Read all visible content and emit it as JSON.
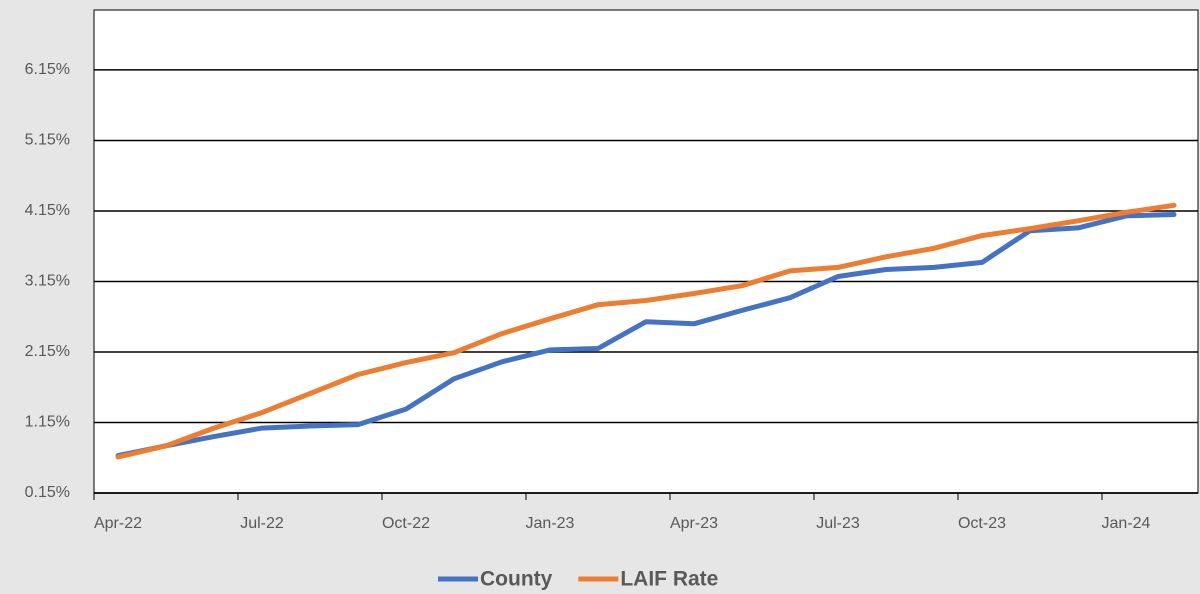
{
  "chart_data": {
    "type": "line",
    "categories": [
      "Apr-22",
      null,
      null,
      "Jul-22",
      null,
      null,
      "Oct-22",
      null,
      null,
      "Jan-23",
      null,
      null,
      "Apr-23",
      null,
      null,
      "Jul-23",
      null,
      null,
      "Oct-23",
      null,
      null,
      "Jan-24",
      null
    ],
    "series": [
      {
        "name": "County",
        "color": "#4472c4",
        "values": [
          0.68,
          0.82,
          0.95,
          1.07,
          1.1,
          1.12,
          1.34,
          1.77,
          2.01,
          2.18,
          2.2,
          2.58,
          2.55,
          2.74,
          2.92,
          3.22,
          3.32,
          3.35,
          3.42,
          3.87,
          3.91,
          4.08,
          4.1
        ]
      },
      {
        "name": "LAIF Rate",
        "color": "#ed7d31",
        "values": [
          0.66,
          0.82,
          1.07,
          1.29,
          1.56,
          1.83,
          2.0,
          2.14,
          2.41,
          2.62,
          2.82,
          2.88,
          2.98,
          3.09,
          3.3,
          3.35,
          3.5,
          3.62,
          3.8,
          3.9,
          4.01,
          4.13,
          4.23
        ]
      }
    ],
    "ylim": [
      0.15,
      7.0
    ],
    "yticks": [
      {
        "value": 0.15,
        "label": "0.15%"
      },
      {
        "value": 1.15,
        "label": "1.15%"
      },
      {
        "value": 2.15,
        "label": "2.15%"
      },
      {
        "value": 3.15,
        "label": "3.15%"
      },
      {
        "value": 4.15,
        "label": "4.15%"
      },
      {
        "value": 5.15,
        "label": "5.15%"
      },
      {
        "value": 6.15,
        "label": "6.15%"
      }
    ],
    "grid": true,
    "legend": "bottom"
  }
}
